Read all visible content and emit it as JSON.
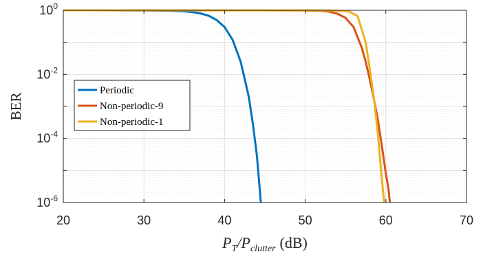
{
  "chart_data": {
    "type": "line",
    "title": "",
    "xlabel": {
      "main": "P",
      "sub1": "T",
      "sep": "/P",
      "sub2": "clutter",
      "unit": "(dB)"
    },
    "ylabel": "BER",
    "xlim": [
      20,
      70
    ],
    "ylim": [
      1e-06,
      1
    ],
    "yscale": "log",
    "grid": true,
    "minor_grid": true,
    "x_ticks": [
      "20",
      "30",
      "40",
      "50",
      "60",
      "70"
    ],
    "y_ticks": [
      {
        "base": "10",
        "exp": "0",
        "value": 1
      },
      {
        "base": "10",
        "exp": "-2",
        "value": 0.01
      },
      {
        "base": "10",
        "exp": "-4",
        "value": 0.0001
      },
      {
        "base": "10",
        "exp": "-6",
        "value": 1e-06
      }
    ],
    "legend_position": "left-middle",
    "series": [
      {
        "name": "Periodic",
        "color": "#0072BD",
        "x": [
          20,
          30,
          33,
          35,
          36,
          37,
          38,
          39,
          40,
          41,
          42,
          43,
          43.5,
          44,
          44.3,
          44.5
        ],
        "y": [
          1,
          0.99,
          0.97,
          0.93,
          0.88,
          0.8,
          0.68,
          0.5,
          0.3,
          0.12,
          0.025,
          0.002,
          0.0003,
          3e-05,
          4e-06,
          1e-06
        ]
      },
      {
        "name": "Non-periodic-9",
        "color": "#D95319",
        "x": [
          20,
          50,
          52,
          53,
          54,
          55,
          56,
          57,
          57.5,
          58,
          58.5,
          59,
          59.5,
          60,
          60.3,
          60.5
        ],
        "y": [
          1,
          0.99,
          0.96,
          0.9,
          0.78,
          0.58,
          0.3,
          0.07,
          0.025,
          0.007,
          0.0018,
          0.0004,
          6e-05,
          8e-06,
          3e-06,
          1e-06
        ]
      },
      {
        "name": "Non-periodic-1",
        "color": "#EDB120",
        "x": [
          20,
          50,
          53,
          54.5,
          55.5,
          56.5,
          57.5,
          58,
          58.5,
          59,
          59.3,
          59.6,
          59.8
        ],
        "y": [
          1,
          1,
          0.99,
          0.97,
          0.9,
          0.65,
          0.1,
          0.015,
          0.002,
          0.00015,
          2e-05,
          3e-06,
          1e-06
        ]
      }
    ]
  }
}
